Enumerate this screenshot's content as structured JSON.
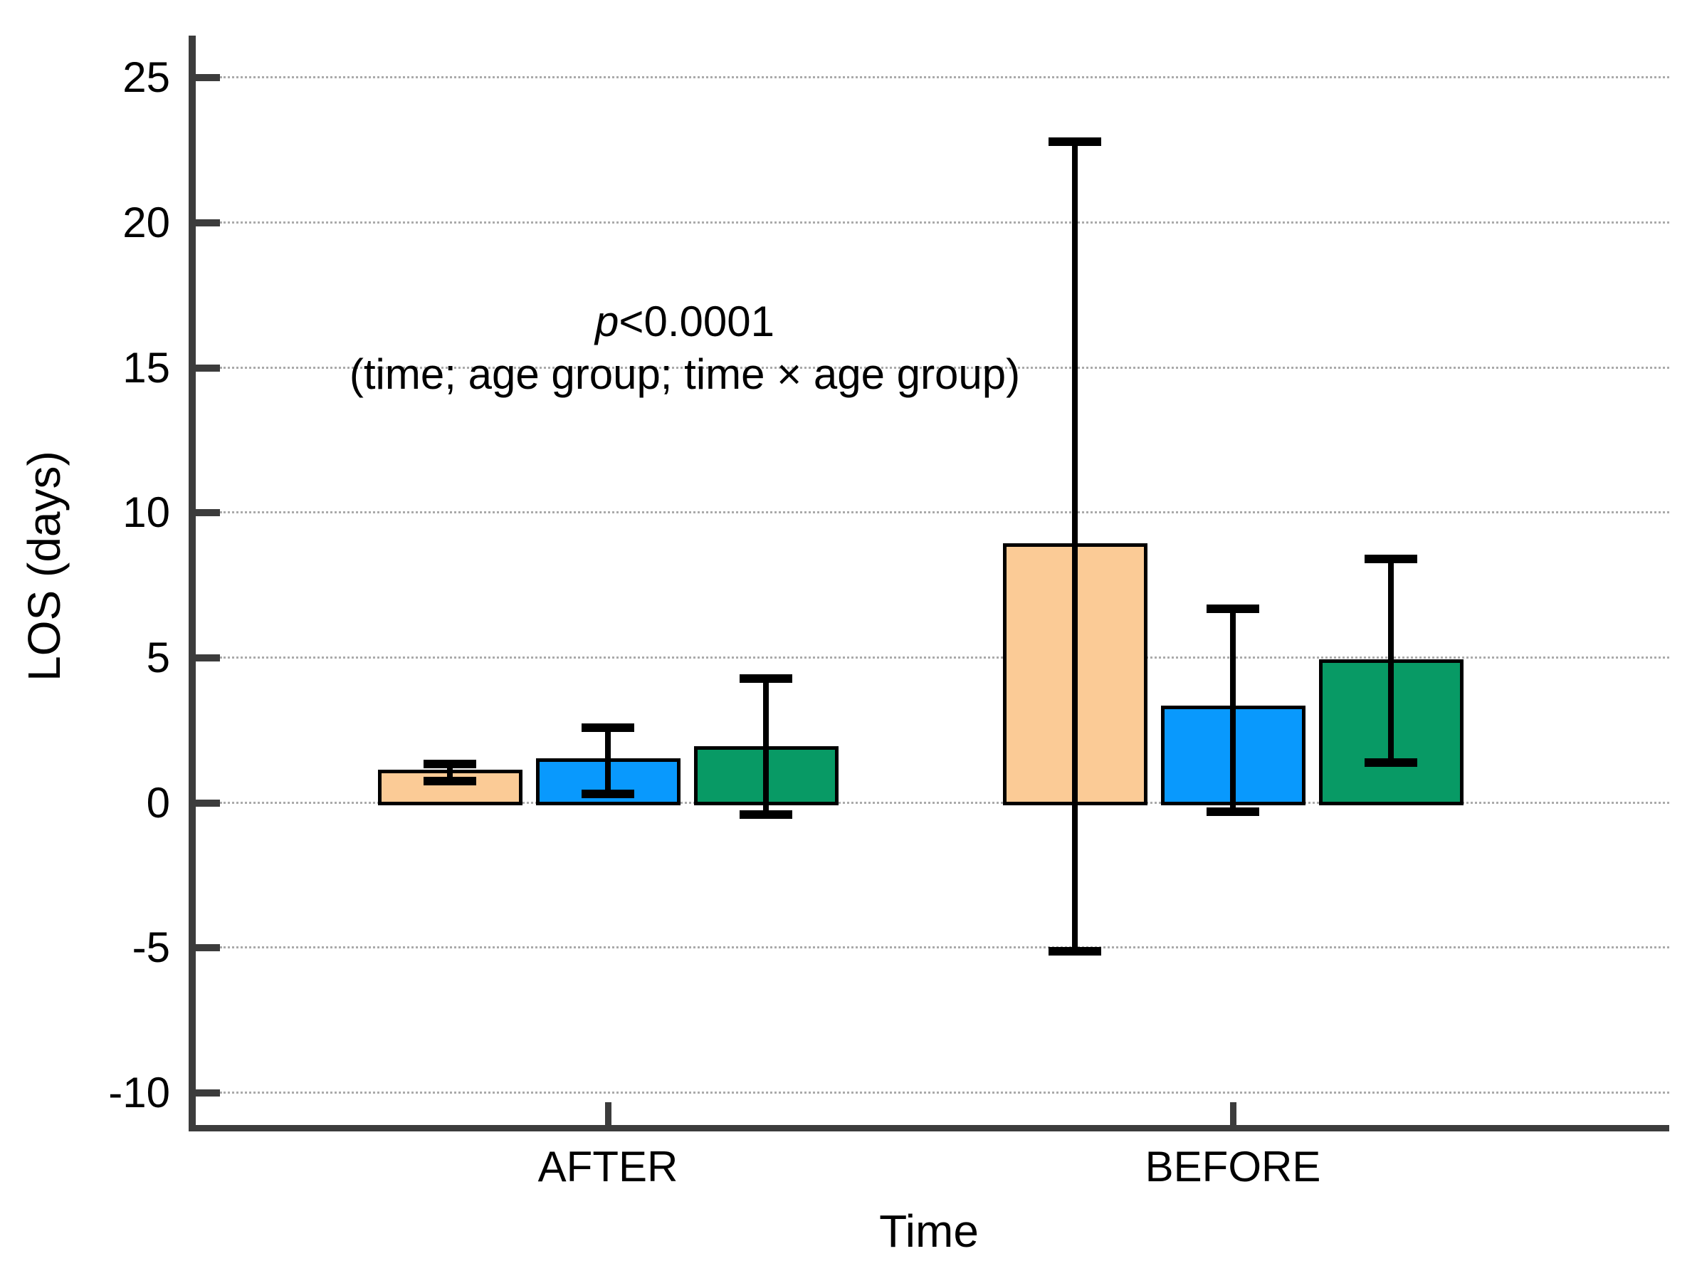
{
  "chart": {
    "background": "#ffffff"
  },
  "chart_data": {
    "type": "bar",
    "title": "",
    "xlabel": "Time",
    "ylabel": "LOS (days)",
    "categories": [
      "AFTER",
      "BEFORE"
    ],
    "series": [
      {
        "name": "orange",
        "color": "#FBCB96",
        "values": [
          1.1,
          8.9
        ],
        "err_low": [
          0.75,
          -5.1
        ],
        "err_high": [
          1.35,
          22.8
        ]
      },
      {
        "name": "blue",
        "color": "#0999FD",
        "values": [
          1.5,
          3.3
        ],
        "err_low": [
          0.3,
          -0.3
        ],
        "err_high": [
          2.6,
          6.7
        ]
      },
      {
        "name": "green",
        "color": "#089A65",
        "values": [
          1.9,
          4.9
        ],
        "err_low": [
          -0.4,
          1.4
        ],
        "err_high": [
          4.3,
          8.4
        ]
      }
    ],
    "error_bars": true,
    "annotation": {
      "p": "p",
      "rest": "<0.0001",
      "line2": "(time; age group; time × age group)"
    },
    "yticks": [
      25,
      20,
      15,
      10,
      5,
      0,
      -5,
      -10
    ],
    "ylim": [
      -11.1,
      26.45
    ],
    "grid": "horizontal-dotted",
    "legend": "none",
    "colors": {
      "axis": "#3c3c3c",
      "gridline": "#aaaaaa",
      "text": "#000000"
    }
  }
}
